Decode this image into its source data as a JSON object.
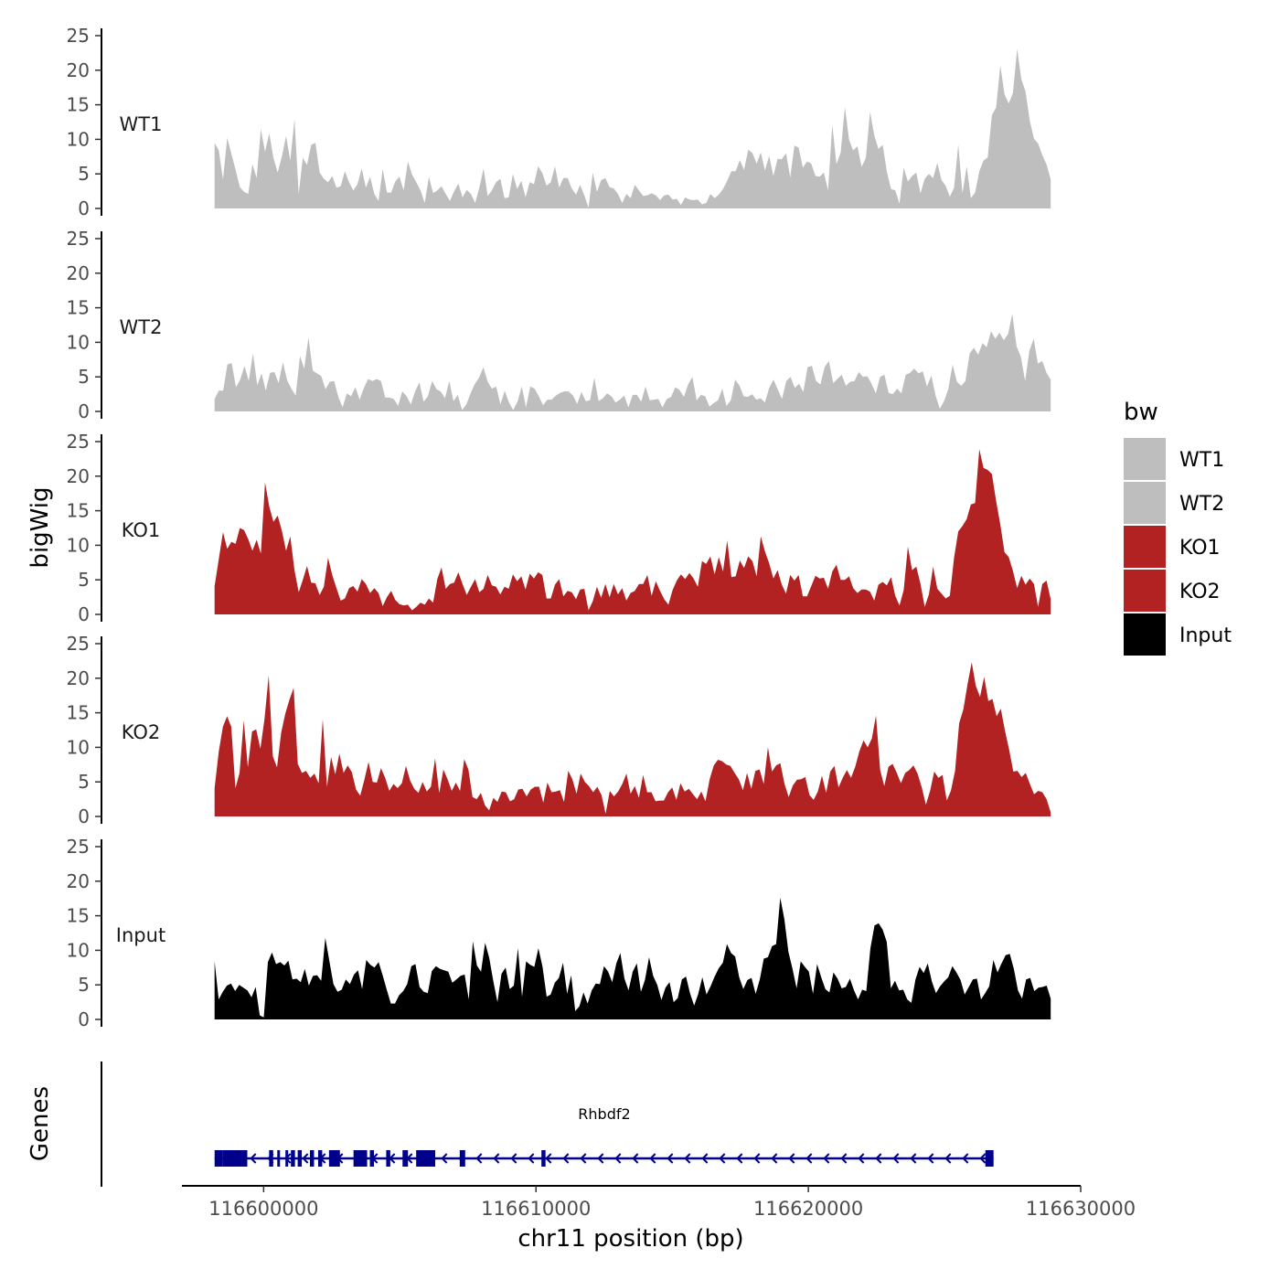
{
  "chart_data": {
    "type": "area",
    "ylabel": "bigWig",
    "xlabel": "chr11 position (bp)",
    "xlim": [
      116597000,
      116630000
    ],
    "data_range": [
      116598200,
      116628900
    ],
    "ylim": [
      0,
      25
    ],
    "y_ticks": [
      "0",
      "5",
      "10",
      "15",
      "20",
      "25"
    ],
    "x_ticks": [
      {
        "value": 116600000,
        "label": "116600000"
      },
      {
        "value": 116610000,
        "label": "116610000"
      },
      {
        "value": 116620000,
        "label": "116620000"
      },
      {
        "value": 116630000,
        "label": "116630000"
      }
    ],
    "legend": {
      "title": "bw",
      "position": "right",
      "items": [
        {
          "label": "WT1",
          "color": "#bebebe"
        },
        {
          "label": "WT2",
          "color": "#bebebe"
        },
        {
          "label": "KO1",
          "color": "#b22222"
        },
        {
          "label": "KO2",
          "color": "#b22222"
        },
        {
          "label": "Input",
          "color": "#000000"
        }
      ]
    },
    "series": [
      {
        "name": "WT1",
        "color": "#bebebe",
        "values": [
          9.5,
          8.4,
          4.2,
          10.2,
          7.9,
          5.6,
          3.1,
          2.4,
          2.1,
          6.4,
          4.4,
          11.5,
          8.2,
          10.9,
          7.3,
          5.2,
          7.5,
          10.5,
          6.9,
          12.9,
          2.1,
          7.3,
          6.3,
          9.2,
          9.5,
          5.2,
          4.3,
          3.8,
          4.7,
          3.0,
          3.2,
          5.4,
          3.8,
          2.6,
          3.5,
          5.8,
          3.0,
          4.6,
          2.1,
          1.1,
          5.7,
          2.3,
          2.3,
          3.9,
          4.6,
          2.6,
          6.8,
          4.9,
          3.8,
          2.6,
          0.8,
          4.6,
          2.2,
          2.6,
          3.2,
          2.1,
          1.1,
          2.5,
          3.6,
          1.6,
          2.7,
          2.1,
          0.8,
          3.0,
          5.8,
          1.8,
          2.6,
          3.8,
          4.3,
          1.5,
          1.6,
          5.0,
          2.8,
          4.0,
          1.6,
          3.8,
          3.5,
          6.1,
          5.1,
          3.3,
          3.8,
          6.1,
          3.0,
          4.4,
          4.4,
          2.9,
          2.0,
          3.4,
          1.9,
          0.1,
          5.2,
          2.4,
          4.1,
          4.4,
          3.1,
          2.9,
          2.1,
          0.8,
          2.1,
          1.5,
          3.4,
          2.6,
          1.8,
          1.9,
          2.2,
          1.9,
          1.2,
          1.9,
          2.0,
          1.3,
          1.4,
          0.5,
          1.6,
          1.3,
          1.2,
          1.3,
          0.6,
          0.8,
          2.1,
          1.5,
          2.0,
          2.8,
          4.0,
          5.4,
          5.4,
          7.0,
          5.6,
          8.5,
          8.0,
          6.5,
          8.1,
          5.5,
          7.6,
          4.7,
          7.2,
          7.1,
          8.0,
          4.5,
          9.1,
          8.8,
          5.9,
          6.8,
          6.5,
          4.7,
          4.6,
          5.2,
          2.6,
          12.1,
          6.4,
          8.1,
          14.7,
          9.9,
          8.4,
          9.0,
          6.0,
          7.3,
          14.0,
          10.6,
          8.6,
          9.2,
          5.3,
          2.8,
          2.6,
          0.7,
          5.9,
          3.9,
          4.7,
          5.2,
          2.2,
          4.3,
          5.0,
          4.4,
          6.6,
          4.1,
          3.3,
          1.7,
          3.0,
          9.2,
          2.2,
          6.1,
          1.5,
          2.3,
          5.4,
          6.9,
          7.4,
          13.5,
          14.6,
          20.7,
          16.5,
          15.2,
          16.7,
          23.1,
          18.7,
          16.9,
          12.7,
          10.1,
          9.4,
          7.7,
          6.4,
          4.2
        ]
      },
      {
        "name": "WT2",
        "color": "#bebebe",
        "values": [
          1.8,
          3.0,
          3.0,
          6.8,
          7.0,
          3.5,
          4.6,
          6.6,
          4.4,
          8.4,
          3.8,
          5.5,
          3.0,
          5.6,
          5.7,
          4.1,
          7.1,
          4.5,
          3.3,
          2.3,
          8.0,
          6.2,
          10.7,
          5.9,
          5.5,
          5.1,
          3.2,
          4.3,
          4.4,
          2.1,
          0.6,
          2.6,
          2.2,
          3.5,
          1.7,
          3.4,
          4.7,
          4.4,
          4.7,
          4.4,
          2.0,
          2.0,
          1.8,
          0.8,
          2.9,
          2.2,
          1.0,
          2.9,
          4.2,
          1.4,
          2.2,
          4.4,
          3.2,
          2.9,
          1.9,
          4.4,
          1.5,
          2.4,
          0.2,
          1.0,
          2.6,
          4.0,
          4.9,
          6.4,
          4.3,
          3.3,
          3.6,
          1.0,
          3.0,
          1.3,
          0.2,
          1.4,
          3.6,
          0.6,
          3.6,
          3.3,
          2.2,
          0.9,
          1.7,
          1.7,
          2.3,
          2.7,
          2.9,
          2.9,
          2.3,
          1.1,
          2.8,
          1.5,
          1.6,
          4.9,
          1.5,
          1.9,
          2.6,
          2.2,
          1.3,
          1.7,
          2.3,
          0.6,
          2.4,
          2.4,
          1.4,
          3.6,
          1.6,
          1.7,
          1.8,
          0.6,
          1.8,
          2.1,
          3.5,
          3.1,
          2.1,
          3.9,
          5.0,
          1.6,
          2.4,
          2.2,
          0.7,
          1.2,
          1.6,
          3.3,
          0.8,
          1.6,
          4.6,
          3.8,
          2.2,
          2.1,
          2.5,
          1.7,
          1.9,
          1.3,
          3.4,
          4.6,
          3.2,
          1.8,
          4.4,
          5.0,
          3.4,
          4.0,
          2.8,
          6.4,
          6.6,
          4.4,
          3.9,
          6.4,
          7.3,
          4.1,
          4.7,
          5.3,
          3.7,
          4.3,
          4.4,
          5.7,
          5.0,
          5.1,
          4.0,
          2.6,
          5.0,
          5.3,
          2.7,
          2.5,
          3.3,
          2.6,
          5.3,
          5.6,
          6.2,
          5.5,
          5.8,
          3.6,
          5.2,
          2.3,
          0.4,
          1.5,
          3.3,
          6.8,
          4.3,
          3.7,
          4.4,
          8.4,
          9.2,
          8.2,
          9.9,
          9.3,
          11.6,
          10.5,
          11.4,
          10.3,
          11.2,
          14.1,
          9.4,
          7.9,
          4.4,
          8.8,
          10.5,
          6.9,
          7.3,
          5.6,
          4.6
        ]
      },
      {
        "name": "KO1",
        "color": "#b22222",
        "values": [
          4.1,
          8.0,
          11.9,
          9.5,
          10.5,
          10.2,
          12.5,
          12.2,
          10.9,
          9.2,
          10.8,
          8.8,
          19.1,
          15.6,
          13.4,
          14.3,
          12.1,
          9.2,
          11.3,
          6.4,
          3.2,
          5.0,
          7.0,
          4.6,
          4.5,
          2.8,
          4.0,
          8.2,
          5.7,
          3.8,
          2.0,
          2.3,
          3.8,
          4.1,
          3.3,
          5.1,
          4.4,
          3.1,
          3.8,
          3.1,
          1.2,
          2.5,
          3.4,
          2.1,
          1.5,
          1.3,
          1.4,
          0.6,
          1.1,
          1.7,
          1.4,
          2.3,
          1.7,
          5.1,
          6.8,
          3.7,
          4.4,
          4.6,
          6.1,
          4.4,
          2.8,
          4.0,
          5.1,
          3.2,
          3.7,
          5.7,
          4.2,
          4.0,
          2.9,
          4.0,
          3.7,
          5.8,
          4.8,
          5.5,
          3.6,
          5.9,
          5.2,
          6.1,
          5.7,
          2.3,
          2.3,
          4.3,
          5.1,
          2.6,
          3.4,
          3.2,
          2.2,
          3.6,
          3.7,
          0.6,
          1.9,
          4.0,
          2.4,
          4.4,
          2.5,
          4.4,
          2.9,
          3.8,
          2.0,
          3.1,
          3.4,
          4.4,
          4.4,
          5.7,
          2.7,
          4.8,
          3.4,
          2.2,
          1.4,
          3.5,
          4.9,
          5.8,
          5.1,
          6.0,
          5.2,
          4.0,
          7.7,
          7.3,
          8.4,
          5.8,
          8.3,
          6.2,
          10.7,
          5.4,
          5.5,
          7.8,
          6.7,
          8.4,
          7.7,
          5.5,
          11.3,
          9.1,
          7.4,
          5.2,
          6.4,
          4.3,
          3.0,
          5.7,
          4.9,
          5.7,
          2.6,
          2.6,
          4.1,
          5.6,
          5.2,
          5.3,
          3.7,
          6.2,
          7.2,
          5.0,
          5.0,
          5.5,
          3.8,
          3.1,
          3.6,
          3.6,
          3.3,
          2.0,
          4.3,
          4.7,
          4.2,
          5.4,
          2.7,
          1.3,
          3.5,
          9.8,
          6.4,
          6.9,
          4.4,
          1.1,
          2.9,
          6.9,
          3.7,
          3.0,
          2.3,
          2.7,
          8.2,
          12.0,
          12.8,
          13.8,
          15.9,
          16.1,
          23.9,
          21.2,
          20.9,
          20.3,
          16.4,
          13.0,
          9.0,
          8.3,
          6.3,
          3.8,
          5.6,
          4.3,
          5.2,
          4.4,
          1.1,
          4.4,
          4.9,
          2.2
        ]
      },
      {
        "name": "KO2",
        "color": "#b22222",
        "values": [
          4.1,
          9.4,
          13.0,
          14.5,
          13.0,
          4.1,
          6.3,
          13.9,
          7.1,
          12.3,
          12.6,
          9.8,
          14.1,
          20.4,
          8.7,
          7.1,
          12.1,
          14.9,
          16.9,
          18.6,
          7.6,
          6.3,
          6.6,
          5.6,
          6.2,
          4.8,
          14.1,
          4.3,
          8.6,
          6.1,
          9.1,
          6.3,
          7.4,
          6.4,
          3.9,
          3.0,
          5.3,
          7.9,
          5.0,
          4.9,
          7.0,
          5.6,
          3.7,
          4.7,
          4.1,
          4.8,
          7.3,
          5.2,
          4.0,
          3.4,
          5.0,
          3.6,
          4.3,
          8.4,
          3.4,
          6.8,
          5.4,
          3.7,
          4.9,
          3.7,
          8.3,
          6.8,
          2.8,
          2.5,
          3.4,
          1.6,
          0.9,
          2.7,
          2.1,
          3.6,
          3.5,
          2.2,
          2.5,
          3.9,
          4.0,
          2.9,
          3.9,
          4.3,
          4.3,
          2.0,
          4.9,
          3.5,
          3.6,
          3.8,
          2.1,
          6.6,
          5.4,
          3.3,
          6.2,
          5.0,
          4.4,
          3.5,
          4.3,
          3.1,
          0.4,
          3.7,
          2.9,
          3.6,
          4.7,
          6.2,
          3.3,
          4.4,
          2.7,
          6.0,
          3.5,
          3.5,
          2.2,
          2.3,
          2.3,
          3.5,
          4.2,
          2.4,
          4.8,
          3.6,
          4.0,
          3.2,
          2.5,
          3.6,
          2.2,
          5.4,
          7.4,
          8.2,
          8.0,
          7.5,
          7.3,
          6.3,
          5.4,
          3.8,
          6.3,
          4.0,
          6.6,
          6.8,
          4.7,
          10.0,
          6.5,
          7.4,
          7.7,
          4.7,
          2.8,
          4.5,
          5.3,
          5.4,
          5.7,
          3.1,
          2.4,
          3.6,
          5.9,
          3.4,
          6.5,
          7.3,
          4.2,
          5.6,
          6.7,
          5.6,
          7.2,
          9.4,
          11.0,
          10.0,
          11.3,
          14.6,
          6.7,
          4.4,
          7.2,
          7.6,
          6.3,
          4.8,
          6.3,
          6.7,
          7.4,
          6.2,
          4.2,
          1.7,
          3.7,
          6.5,
          5.6,
          6.0,
          2.3,
          3.7,
          6.6,
          13.5,
          15.5,
          19.1,
          22.3,
          18.9,
          17.3,
          20.2,
          16.7,
          17.0,
          14.5,
          15.6,
          12.4,
          9.7,
          6.5,
          6.6,
          5.7,
          6.3,
          4.7,
          3.2,
          3.7,
          3.5,
          2.5,
          0.6
        ]
      },
      {
        "name": "Input",
        "color": "#000000",
        "values": [
          8.4,
          2.9,
          4.0,
          4.9,
          5.2,
          4.1,
          5.0,
          4.6,
          4.2,
          3.2,
          4.7,
          0.6,
          0.3,
          8.3,
          9.7,
          8.0,
          8.3,
          7.8,
          8.5,
          5.8,
          5.9,
          5.4,
          7.3,
          4.9,
          6.3,
          6.4,
          5.6,
          11.8,
          8.4,
          5.1,
          4.0,
          4.3,
          5.8,
          5.1,
          6.5,
          7.1,
          4.4,
          8.6,
          7.9,
          7.5,
          8.3,
          6.4,
          4.3,
          2.3,
          2.3,
          3.5,
          4.1,
          5.1,
          7.7,
          8.0,
          4.7,
          4.0,
          3.8,
          7.0,
          7.7,
          7.3,
          7.1,
          6.9,
          5.3,
          5.8,
          6.3,
          6.5,
          2.9,
          11.3,
          7.8,
          6.9,
          11.1,
          8.9,
          5.5,
          2.5,
          6.6,
          7.5,
          4.4,
          4.9,
          10.3,
          3.3,
          8.4,
          7.9,
          7.6,
          10.3,
          7.6,
          3.3,
          3.6,
          5.3,
          6.0,
          8.2,
          3.7,
          6.4,
          1.2,
          1.9,
          3.9,
          2.3,
          4.2,
          5.2,
          5.1,
          7.7,
          6.9,
          5.4,
          8.1,
          9.6,
          5.9,
          4.2,
          6.9,
          8.1,
          4.0,
          5.7,
          9.0,
          6.3,
          5.0,
          2.8,
          4.6,
          5.4,
          2.5,
          3.1,
          5.8,
          6.2,
          3.8,
          2.0,
          3.7,
          6.1,
          3.6,
          4.8,
          6.2,
          7.4,
          8.2,
          10.9,
          9.6,
          9.1,
          6.1,
          4.4,
          5.7,
          6.0,
          3.7,
          5.8,
          8.8,
          9.0,
          10.6,
          10.9,
          17.6,
          14.5,
          9.8,
          7.3,
          4.5,
          8.4,
          7.6,
          6.9,
          3.7,
          8.0,
          6.1,
          4.4,
          3.9,
          6.8,
          5.9,
          4.5,
          4.7,
          5.9,
          4.2,
          2.9,
          4.3,
          4.1,
          10.3,
          13.6,
          13.9,
          13.0,
          11.2,
          4.5,
          5.6,
          4.2,
          4.3,
          2.9,
          2.4,
          5.8,
          7.6,
          6.7,
          8.1,
          5.5,
          3.8,
          4.8,
          5.5,
          6.1,
          7.7,
          6.8,
          5.7,
          3.6,
          4.7,
          5.8,
          5.9,
          2.9,
          3.8,
          4.8,
          8.6,
          6.8,
          8.1,
          9.3,
          9.5,
          7.3,
          4.2,
          3.0,
          5.8,
          6.0,
          4.1,
          4.6,
          4.7,
          4.9,
          3.0
        ]
      }
    ],
    "gene_track": {
      "ylabel": "Genes",
      "gene": {
        "name": "Rhbdf2",
        "strand": "-",
        "start": 116598200,
        "end": 116626800,
        "exons": [
          [
            116598200,
            116598500
          ],
          [
            116598500,
            116599200
          ],
          [
            116599200,
            116599400
          ],
          [
            116600200,
            116600350
          ],
          [
            116600500,
            116600600
          ],
          [
            116600800,
            116600900
          ],
          [
            116601000,
            116601150
          ],
          [
            116601250,
            116601400
          ],
          [
            116601700,
            116601850
          ],
          [
            116602000,
            116602150
          ],
          [
            116602400,
            116602800
          ],
          [
            116603300,
            116603800
          ],
          [
            116603900,
            116604050
          ],
          [
            116604500,
            116604650
          ],
          [
            116605100,
            116605300
          ],
          [
            116605600,
            116606300
          ],
          [
            116607200,
            116607400
          ],
          [
            116610200,
            116610350
          ],
          [
            116626500,
            116626800
          ]
        ]
      }
    }
  }
}
